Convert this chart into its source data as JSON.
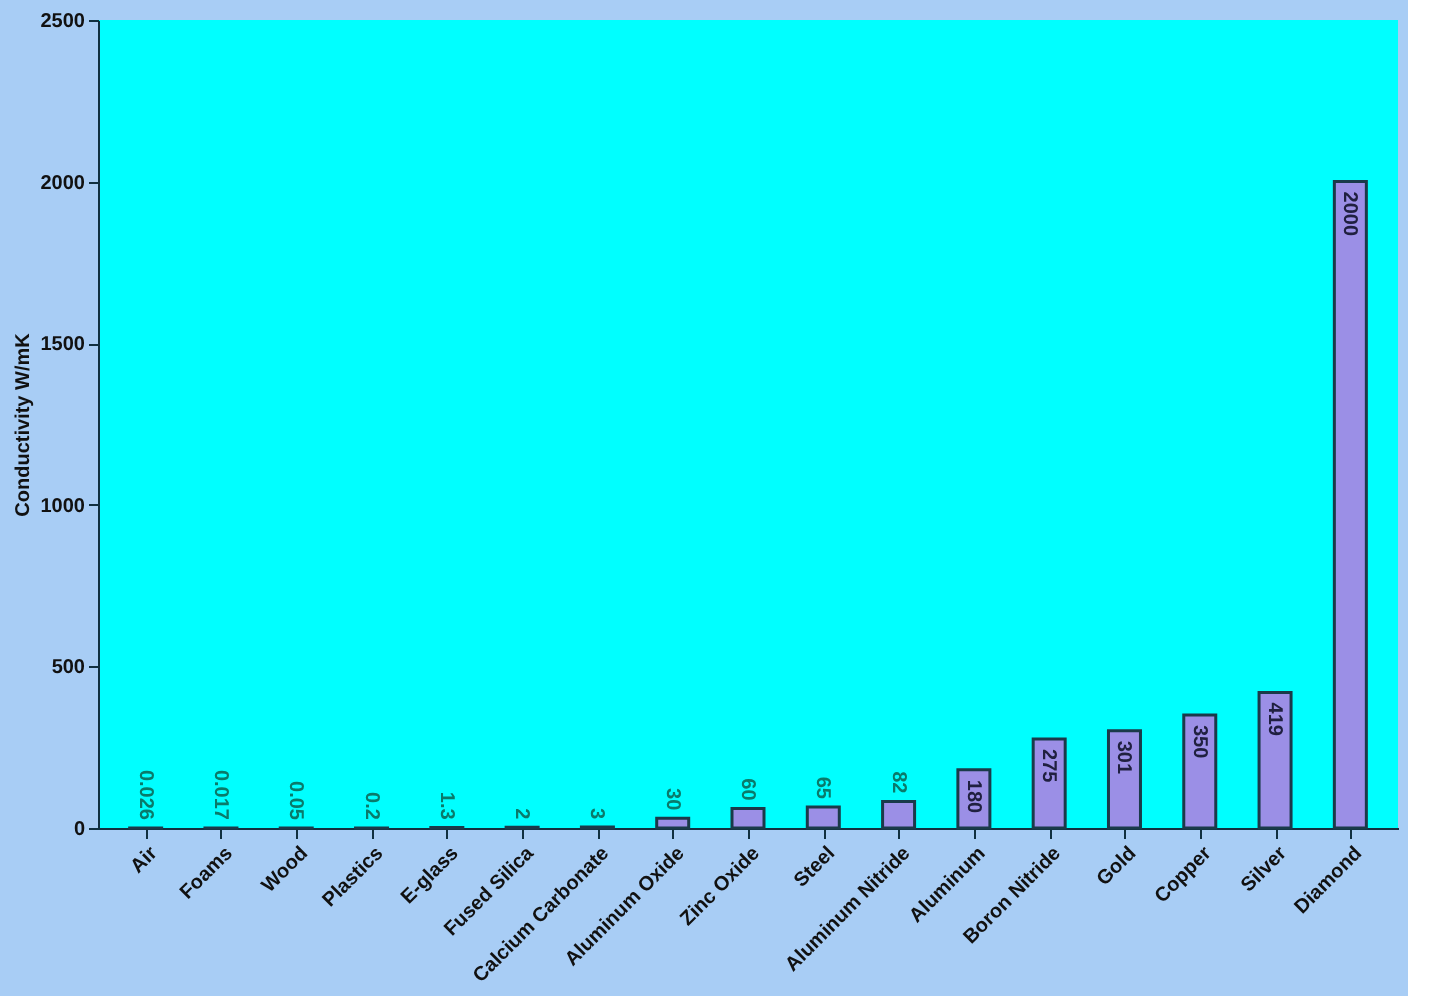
{
  "chart_data": {
    "type": "bar",
    "ylabel": "Conductivity W/mK",
    "categories": [
      "Air",
      "Foams",
      "Wood",
      "Plastics",
      "E-glass",
      "Fused Silica",
      "Calcium Carbonate",
      "Aluminum Oxide",
      "Zinc Oxide",
      "Steel",
      "Aluminum Nitride",
      "Aluminum",
      "Boron Nitride",
      "Gold",
      "Copper",
      "Silver",
      "Diamond"
    ],
    "values": [
      0.026,
      0.017,
      0.05,
      0.2,
      1.3,
      2,
      3,
      30,
      60,
      65,
      82,
      180,
      275,
      301,
      350,
      419,
      2000
    ],
    "color": "#9b8fe6",
    "ylim": [
      0,
      2500
    ],
    "yticks": [
      0,
      500,
      1000,
      1500,
      2000,
      2500
    ],
    "grid": false,
    "data_labels": true
  }
}
